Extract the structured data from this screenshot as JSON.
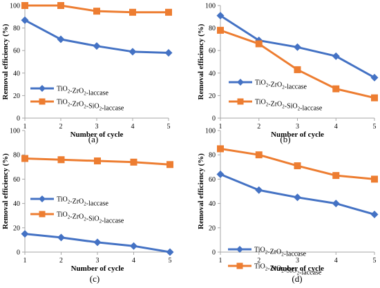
{
  "colors": {
    "series1": "#4472c4",
    "series2": "#ed7d31"
  },
  "chart_data": [
    {
      "type": "line",
      "panel_label": "(a)",
      "xlabel": "Number of cycle",
      "ylabel": "Removal efficiency (%)",
      "x": [
        1,
        2,
        3,
        4,
        5
      ],
      "xticks": [
        "1",
        "2",
        "3",
        "4",
        "5"
      ],
      "ylim": [
        0,
        100
      ],
      "yticks": [
        "0",
        "20",
        "40",
        "60",
        "80",
        "100"
      ],
      "legend": "left-middle",
      "grid": false,
      "series": [
        {
          "name": "TiO2-ZrO2-laccase",
          "marker": "diamond",
          "values": [
            87,
            70,
            64,
            59,
            58
          ]
        },
        {
          "name": "TiO2-ZrO2-SiO2-laccase",
          "marker": "square",
          "values": [
            100,
            100,
            95,
            94,
            94
          ]
        }
      ]
    },
    {
      "type": "line",
      "panel_label": "(b)",
      "xlabel": "Number of cycle",
      "ylabel": "Removal efficiency (%)",
      "x": [
        1,
        2,
        3,
        4,
        5
      ],
      "xticks": [
        "1",
        "2",
        "3",
        "4",
        "5"
      ],
      "ylim": [
        0,
        100
      ],
      "yticks": [
        "0",
        "20",
        "40",
        "60",
        "80",
        "100"
      ],
      "legend": "left-middle",
      "grid": false,
      "series": [
        {
          "name": "TiO2-ZrO2-laccase",
          "marker": "diamond",
          "values": [
            91,
            69,
            63,
            55,
            36
          ]
        },
        {
          "name": "TiO2-ZrO2-SiO2-laccase",
          "marker": "square",
          "values": [
            78,
            66,
            43,
            26,
            18
          ]
        }
      ]
    },
    {
      "type": "line",
      "panel_label": "(c)",
      "xlabel": "Number of cycle",
      "ylabel": "Removal efficiency (%)",
      "x": [
        1,
        2,
        3,
        4,
        5
      ],
      "xticks": [
        "1",
        "2",
        "3",
        "4",
        "5"
      ],
      "ylim": [
        0,
        100
      ],
      "yticks": [
        "0",
        "20",
        "40",
        "60",
        "80",
        "100"
      ],
      "legend": "left-middle",
      "grid": false,
      "series": [
        {
          "name": "TiO2-ZrO2-laccase",
          "marker": "diamond",
          "values": [
            15,
            12,
            8,
            5,
            0
          ]
        },
        {
          "name": "TiO2-ZrO2-SiO2-laccase",
          "marker": "square",
          "values": [
            77,
            76,
            75,
            74,
            72
          ]
        }
      ]
    },
    {
      "type": "line",
      "panel_label": "(d)",
      "xlabel": "Number of cycle",
      "ylabel": "Removal efficiency (%)",
      "x": [
        1,
        2,
        3,
        4,
        5
      ],
      "xticks": [
        "1",
        "2",
        "3",
        "4",
        "5"
      ],
      "ylim": [
        0,
        100
      ],
      "yticks": [
        "0",
        "20",
        "40",
        "60",
        "80",
        "100"
      ],
      "legend": "bottom-left",
      "grid": false,
      "series": [
        {
          "name": "TiO2-ZrO2-laccase",
          "marker": "diamond",
          "values": [
            64,
            51,
            45,
            40,
            31
          ]
        },
        {
          "name": "TiO2-ZrO2-SiO2-laccase",
          "marker": "square",
          "values": [
            85,
            80,
            71,
            63,
            60
          ]
        }
      ]
    }
  ]
}
